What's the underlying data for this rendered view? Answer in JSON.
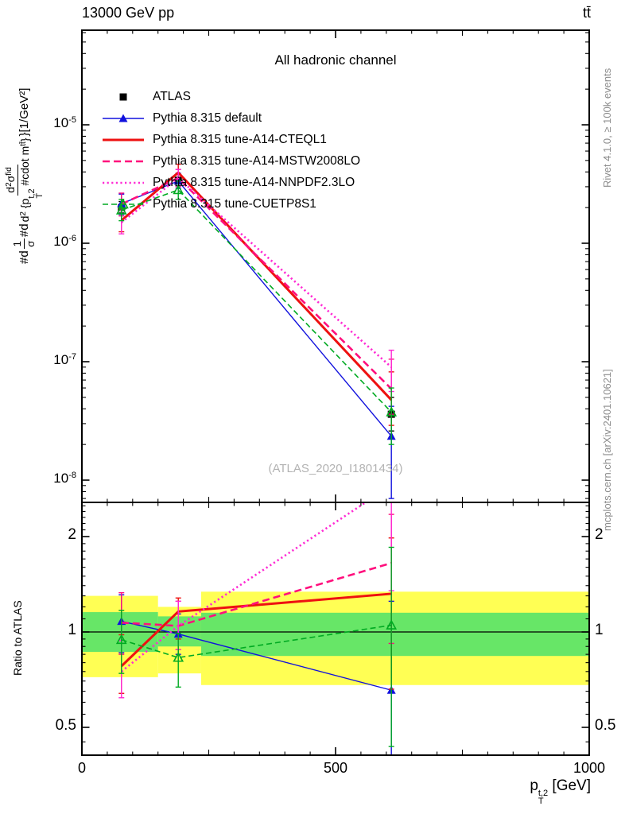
{
  "header": {
    "left": "13000 GeV pp",
    "right": "tt̄"
  },
  "panel_title": "All hadronic channel",
  "watermark": "(ATLAS_2020_I1801434)",
  "side_captions": {
    "rivet": "Rivet 4.1.0, ≥ 100k events",
    "mcplots": "mcplots.cern.ch [arXiv:2401.10621]"
  },
  "ratio_axis_label": "Ratio to ATLAS",
  "x_axis_label": {
    "base": "p",
    "sup": "t,2",
    "sub": "T",
    "unit": " [GeV]"
  },
  "y_axis_label": {
    "lead": "#d",
    "frac1": {
      "num": "1",
      "den": "σ"
    },
    "mid": "#d",
    "frac2": {
      "num_d": "d",
      "num_d_exp": "2",
      "num_sigma": "σ",
      "num_sigma_sup": "fid",
      "den_d": "d",
      "den_d_exp": "2",
      "den_open": " {p",
      "den_p_sup": "t,2",
      "den_p_sub": "T",
      "den_cdot": " #cdot m",
      "den_m_sup": "tt̄",
      "den_close": "}"
    },
    "suffix_brace": "} ",
    "suffix_unit": "[1/GeV²]"
  },
  "chart_data": {
    "type": "line",
    "title": "All hadronic channel",
    "xlabel": "p_T^{t,2} [GeV]",
    "ylabel_main": "#d(1/sigma)#d d2sigma^fid / d2{p_T^{t,2} #cdot m^{tt}} [1/GeV^2]",
    "ylabel_ratio": "Ratio to ATLAS",
    "x_range": [
      0,
      1000
    ],
    "x_major_ticks": [
      0,
      500,
      1000
    ],
    "x_tick_labels": [
      "0",
      "500",
      "1000"
    ],
    "x_medium_ticks": [
      250,
      750
    ],
    "x_minor_step": 50,
    "main_y": {
      "scale": "log10",
      "tick_base": "10",
      "tick_exponents": [
        "-5",
        "-6",
        "-7",
        "-8"
      ],
      "top_value": 6.3e-05,
      "bottom_value": 6.5e-09
    },
    "ratio_y": {
      "scale": "log2",
      "ticks": [
        2,
        1,
        0.5
      ],
      "tick_labels": [
        "2",
        "1",
        "0.5"
      ],
      "top": 2.56,
      "bottom": 0.41
    },
    "x": [
      78,
      190,
      610
    ],
    "series": [
      {
        "name": "ATLAS",
        "color": "#000000",
        "line": "none",
        "marker": "square",
        "width": 0,
        "values": [
          2e-06,
          3.4e-06,
          3.6e-08
        ],
        "main_err": [
          [
            1.8e-06,
            2.25e-06
          ],
          [
            3.05e-06,
            3.8e-06
          ],
          [
            2.6e-08,
            5e-08
          ]
        ],
        "ratio": null,
        "ratio_err": null
      },
      {
        "name": "Pythia 8.315 default",
        "color": "#1111dd",
        "line": "solid",
        "marker": "triangle",
        "width": 1.4,
        "values": [
          2.16e-06,
          3.35e-06,
          2.35e-08
        ],
        "main_err": [
          [
            1.75e-06,
            2.6e-06
          ],
          [
            2.9e-06,
            3.9e-06
          ],
          [
            7e-09,
            4.2e-08
          ]
        ],
        "ratio": [
          1.08,
          0.985,
          0.655
        ],
        "ratio_err": [
          [
            0.86,
            1.31
          ],
          [
            0.85,
            1.14
          ],
          [
            0.33,
            1.25
          ]
        ]
      },
      {
        "name": "Pythia 8.315 tune-A14-CTEQL1",
        "color": "#ee1111",
        "line": "solid",
        "marker": "none",
        "width": 3,
        "values": [
          1.56e-06,
          3.95e-06,
          4.75e-08
        ],
        "main_err": [
          [
            1.25e-06,
            1.95e-06
          ],
          [
            3.35e-06,
            4.65e-06
          ],
          [
            2.9e-08,
            8.2e-08
          ]
        ],
        "ratio": [
          0.78,
          1.16,
          1.32
        ],
        "ratio_err": [
          [
            0.64,
            0.98
          ],
          [
            0.95,
            1.28
          ],
          [
            0.66,
            1.98
          ]
        ]
      },
      {
        "name": "Pythia 8.315 tune-A14-MSTW2008LO",
        "color": "#ff0f7d",
        "line": "dashed",
        "marker": "none",
        "width": 2.6,
        "values": [
          2.14e-06,
          3.55e-06,
          5.9e-08
        ],
        "main_err": [
          [
            1.7e-06,
            2.65e-06
          ],
          [
            3e-06,
            4.2e-06
          ],
          [
            3.6e-08,
            1.05e-07
          ]
        ],
        "ratio": [
          1.07,
          1.045,
          1.65
        ],
        "ratio_err": [
          [
            0.85,
            1.33
          ],
          [
            0.88,
            1.25
          ],
          [
            0.92,
            2.35
          ]
        ]
      },
      {
        "name": "Pythia 8.315 tune-A14-NNPDF2.3LO",
        "color": "#ff2ad4",
        "line": "dotted",
        "marker": "none",
        "width": 2.6,
        "values": [
          1.5e-06,
          3.55e-06,
          9e-08
        ],
        "main_err": [
          [
            1.2e-06,
            1.9e-06
          ],
          [
            3e-06,
            4.2e-06
          ],
          [
            5.6e-08,
            1.25e-07
          ]
        ],
        "ratio": [
          0.75,
          1.045,
          2.9
        ],
        "ratio_err": [
          [
            0.62,
            0.94
          ],
          [
            0.88,
            1.25
          ],
          [
            1.35,
            3.2
          ]
        ]
      },
      {
        "name": "Pythia 8.315 tune-CUETP8S1",
        "color": "#00aa22",
        "line": "dashed",
        "marker": "triangle-open",
        "width": 1.6,
        "values": [
          1.9e-06,
          2.82e-06,
          3.75e-08
        ],
        "main_err": [
          [
            1.55e-06,
            2.35e-06
          ],
          [
            2.35e-06,
            3.35e-06
          ],
          [
            2e-08,
            6e-08
          ]
        ],
        "ratio": [
          0.945,
          0.83,
          1.05
        ],
        "ratio_err": [
          [
            0.74,
            1.17
          ],
          [
            0.67,
            0.99
          ],
          [
            0.435,
            1.85
          ]
        ]
      }
    ],
    "bands": {
      "yellow_color": "#ffff54",
      "green_color": "#67e667",
      "bins": [
        {
          "x0": 0,
          "x1": 150,
          "yellow": [
            0.72,
            1.3
          ],
          "green": [
            0.865,
            1.155
          ]
        },
        {
          "x0": 150,
          "x1": 235,
          "yellow": [
            0.74,
            1.2
          ],
          "green": [
            0.9,
            1.12
          ]
        },
        {
          "x0": 235,
          "x1": 1000,
          "yellow": [
            0.68,
            1.34
          ],
          "green": [
            0.84,
            1.15
          ]
        }
      ]
    },
    "unity_line": 1.0,
    "legend_position": "top-left-inside",
    "grid": false
  }
}
